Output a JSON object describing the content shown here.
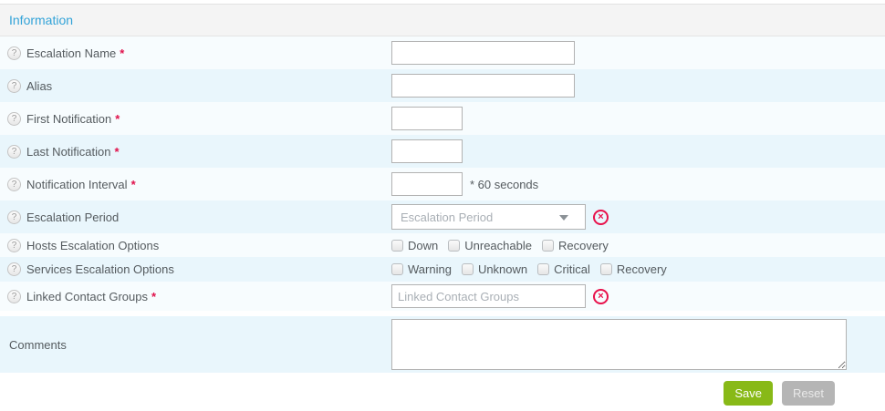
{
  "panel": {
    "title": "Information"
  },
  "icons": {
    "help": "?",
    "clear": "×"
  },
  "colors": {
    "accent_blue": "#32a3d8",
    "required_red": "#e0114b",
    "clear_icon_red": "#e8114b",
    "save_green": "#88b917",
    "reset_gray": "#b5b5b5",
    "row_light": "#f7fcfe",
    "row_dark": "#e9f6fc",
    "header_gray": "#f4f4f4"
  },
  "form": {
    "fields": {
      "escalation_name": {
        "label": "Escalation Name",
        "required": "*",
        "value": ""
      },
      "alias": {
        "label": "Alias",
        "value": ""
      },
      "first_notification": {
        "label": "First Notification",
        "required": "*",
        "value": ""
      },
      "last_notification": {
        "label": "Last Notification",
        "required": "*",
        "value": ""
      },
      "notification_interval": {
        "label": "Notification Interval",
        "required": "*",
        "value": "",
        "suffix": "* 60 seconds"
      },
      "escalation_period": {
        "label": "Escalation Period",
        "placeholder": "Escalation Period"
      },
      "hosts_escalation_options": {
        "label": "Hosts Escalation Options",
        "options": [
          "Down",
          "Unreachable",
          "Recovery"
        ]
      },
      "services_escalation_options": {
        "label": "Services Escalation Options",
        "options": [
          "Warning",
          "Unknown",
          "Critical",
          "Recovery"
        ]
      },
      "linked_contact_groups": {
        "label": "Linked Contact Groups",
        "required": "*",
        "placeholder": "Linked Contact Groups"
      },
      "comments": {
        "label": "Comments",
        "value": ""
      }
    },
    "buttons": {
      "save": "Save",
      "reset": "Reset"
    }
  }
}
